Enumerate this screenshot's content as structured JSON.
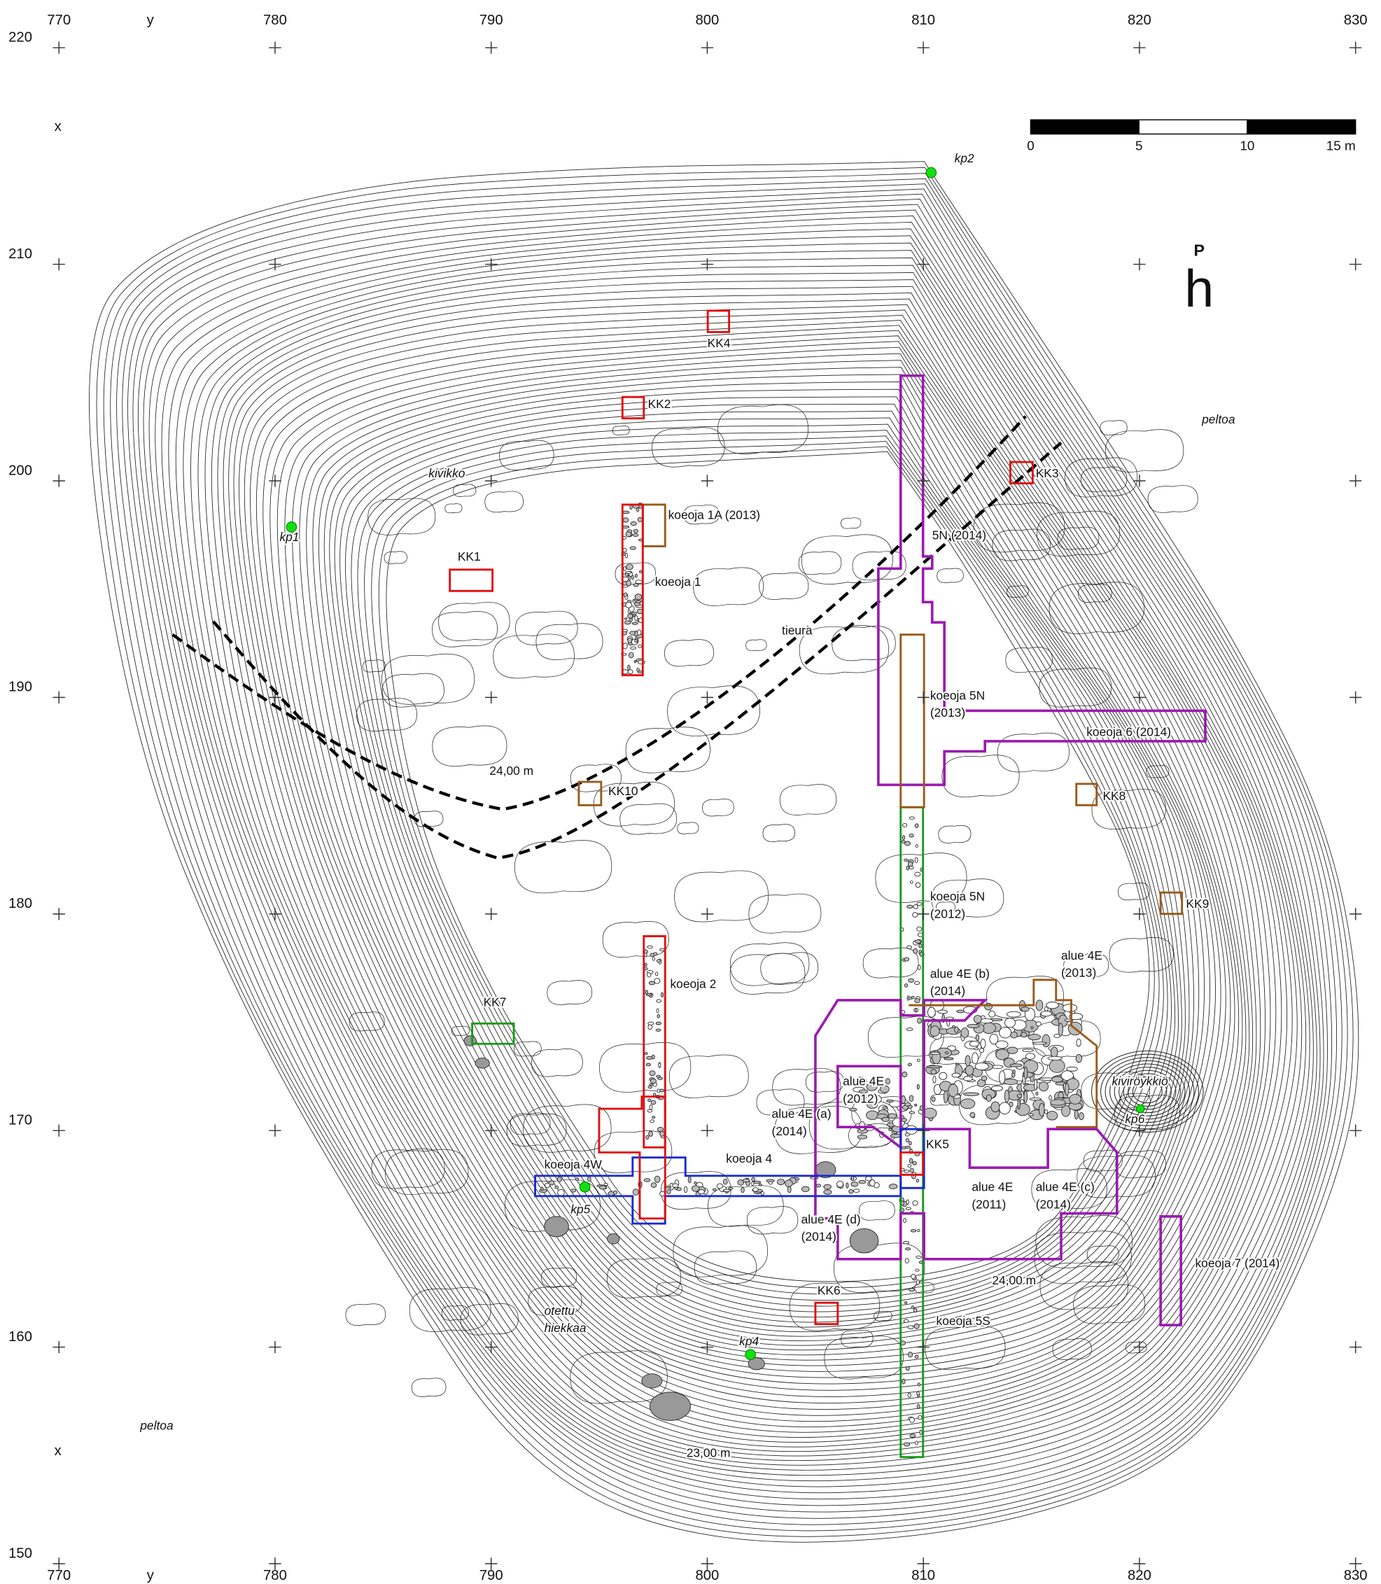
{
  "grid": {
    "top": {
      "title": "y",
      "ticks": [
        770,
        780,
        790,
        800,
        810,
        820,
        830
      ]
    },
    "bottom": {
      "title": "y",
      "ticks": [
        770,
        780,
        790,
        800,
        810,
        820,
        830
      ]
    },
    "left": {
      "titles": [
        "x",
        "x"
      ],
      "ticks": [
        220,
        210,
        200,
        190,
        180,
        170,
        160,
        150
      ]
    }
  },
  "scale_bar": {
    "ticks": [
      0,
      5,
      10,
      {
        "value": 15,
        "label": "15 m"
      }
    ]
  },
  "north_arrow": {
    "letter": "P",
    "symbol": "h"
  },
  "labels": [
    [
      "kp2"
    ],
    [
      "kivikko"
    ],
    [
      "kp1"
    ],
    [
      "KK1"
    ],
    [
      "KK4"
    ],
    [
      "KK2"
    ],
    [
      "KK3"
    ],
    [
      "koeoja 1A (2013)"
    ],
    [
      "5N (2014)"
    ],
    [
      "koeoja 1"
    ],
    [
      "tieura"
    ],
    [
      "peltoa"
    ],
    [
      "koeoja 5N",
      "(2013)"
    ],
    [
      "koeoja 6 (2014)"
    ],
    [
      "24,00 m"
    ],
    [
      "KK10"
    ],
    [
      "KK8"
    ],
    [
      "koeoja 5N",
      "(2012)"
    ],
    [
      "KK9"
    ],
    [
      "koeoja 2"
    ],
    [
      "alue 4E (b)",
      "(2014)"
    ],
    [
      "alue 4E",
      "(2013)"
    ],
    [
      "KK7"
    ],
    [
      "alue 4E",
      "(2012)"
    ],
    [
      "kiviröykkiö"
    ],
    [
      "kp6"
    ],
    [
      "alue 4E (a)",
      "(2014)"
    ],
    [
      "KK5"
    ],
    [
      "koeoja 4W"
    ],
    [
      "koeoja 4"
    ],
    [
      "kp5"
    ],
    [
      "alue 4E",
      "(2011)"
    ],
    [
      "alue 4E (c)",
      "(2014)"
    ],
    [
      "alue 4E (d)",
      "(2014)"
    ],
    [
      "24,00 m"
    ],
    [
      "koeoja 7 (2014)"
    ],
    [
      "KK6"
    ],
    [
      "koeoja 5S"
    ],
    [
      "otettu",
      "hiekkaa"
    ],
    [
      "kp4"
    ],
    [
      "peltoa"
    ],
    [
      "23,00 m"
    ]
  ]
}
